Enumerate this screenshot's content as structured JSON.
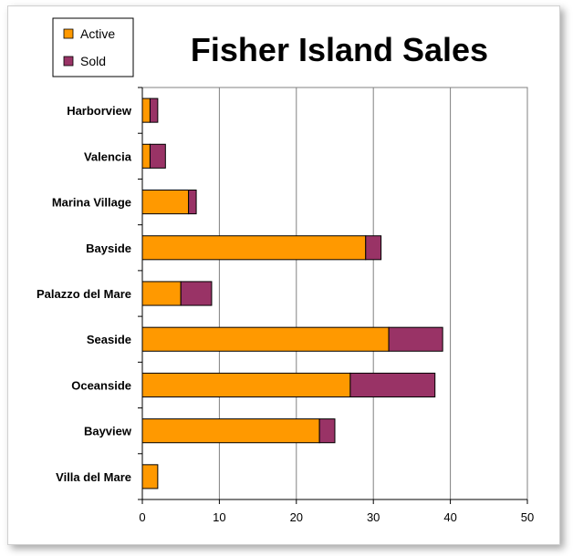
{
  "chart_data": {
    "type": "bar",
    "orientation": "horizontal",
    "stacked": true,
    "title": "Fisher Island Sales",
    "categories": [
      "Harborview",
      "Valencia",
      "Marina Village",
      "Bayside",
      "Palazzo del Mare",
      "Seaside",
      "Oceanside",
      "Bayview",
      "Villa del Mare"
    ],
    "series": [
      {
        "name": "Active",
        "color": "#FF9900",
        "values": [
          1,
          1,
          6,
          29,
          5,
          32,
          27,
          23,
          2
        ]
      },
      {
        "name": "Sold",
        "color": "#993366",
        "values": [
          1,
          2,
          1,
          2,
          4,
          7,
          11,
          2,
          0
        ]
      }
    ],
    "xlim": [
      0,
      50
    ],
    "xticks": [
      "0",
      "10",
      "20",
      "30",
      "40",
      "50"
    ],
    "grid": true,
    "legend_position": "top-left"
  }
}
